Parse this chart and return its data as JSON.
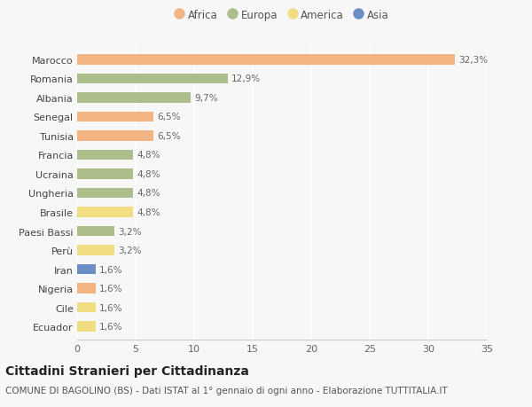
{
  "countries": [
    "Marocco",
    "Romania",
    "Albania",
    "Senegal",
    "Tunisia",
    "Francia",
    "Ucraina",
    "Ungheria",
    "Brasile",
    "Paesi Bassi",
    "Perù",
    "Iran",
    "Nigeria",
    "Cile",
    "Ecuador"
  ],
  "values": [
    32.3,
    12.9,
    9.7,
    6.5,
    6.5,
    4.8,
    4.8,
    4.8,
    4.8,
    3.2,
    3.2,
    1.6,
    1.6,
    1.6,
    1.6
  ],
  "continents": [
    "Africa",
    "Europa",
    "Europa",
    "Africa",
    "Africa",
    "Europa",
    "Europa",
    "Europa",
    "America",
    "Europa",
    "America",
    "Asia",
    "Africa",
    "America",
    "America"
  ],
  "labels": [
    "32,3%",
    "12,9%",
    "9,7%",
    "6,5%",
    "6,5%",
    "4,8%",
    "4,8%",
    "4,8%",
    "4,8%",
    "3,2%",
    "3,2%",
    "1,6%",
    "1,6%",
    "1,6%",
    "1,6%"
  ],
  "colors": {
    "Africa": "#F2B482",
    "Europa": "#ABBE8B",
    "America": "#F2DE82",
    "Asia": "#6B8FC4"
  },
  "legend_order": [
    "Africa",
    "Europa",
    "America",
    "Asia"
  ],
  "xlim": [
    0,
    35
  ],
  "xticks": [
    0,
    5,
    10,
    15,
    20,
    25,
    30,
    35
  ],
  "title": "Cittadini Stranieri per Cittadinanza",
  "subtitle": "COMUNE DI BAGOLINO (BS) - Dati ISTAT al 1° gennaio di ogni anno - Elaborazione TUTTITALIA.IT",
  "bg_color": "#f7f7f7",
  "bar_height": 0.55,
  "title_fontsize": 10,
  "subtitle_fontsize": 7.5,
  "label_fontsize": 7.5,
  "tick_fontsize": 8,
  "legend_fontsize": 8.5
}
